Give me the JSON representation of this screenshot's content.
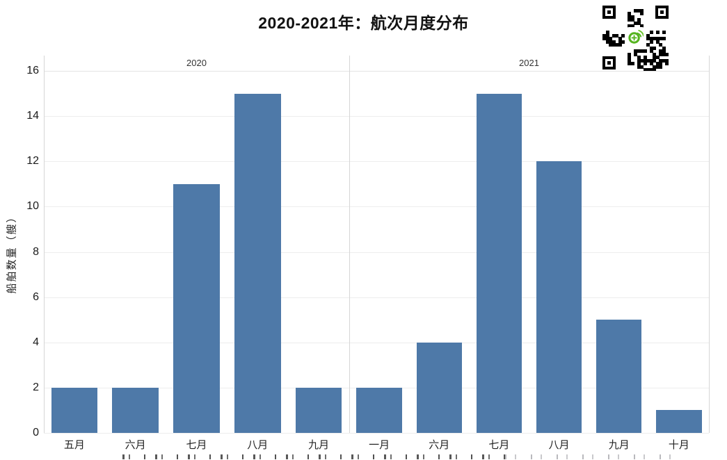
{
  "title": "2020-2021年：航次月度分布",
  "chart_data": {
    "type": "bar",
    "title": "2020-2021年：航次月度分布",
    "xlabel": "",
    "ylabel": "船舶数量（艘）",
    "ylim": [
      0,
      16
    ],
    "yticks": [
      0,
      2,
      4,
      6,
      8,
      10,
      12,
      14,
      16
    ],
    "grid": true,
    "legend": "none",
    "bar_color": "#4e79a8",
    "facets": [
      {
        "label": "2020",
        "categories": [
          "五月",
          "六月",
          "七月",
          "八月",
          "九月"
        ],
        "values": [
          2,
          2,
          11,
          15,
          2
        ]
      },
      {
        "label": "2021",
        "categories": [
          "一月",
          "六月",
          "七月",
          "八月",
          "九月",
          "十月"
        ],
        "values": [
          2,
          4,
          15,
          12,
          5,
          1
        ]
      }
    ]
  },
  "icons": {
    "qr_code": "qr-code",
    "qr_center_logo": "green-signal-logo"
  }
}
